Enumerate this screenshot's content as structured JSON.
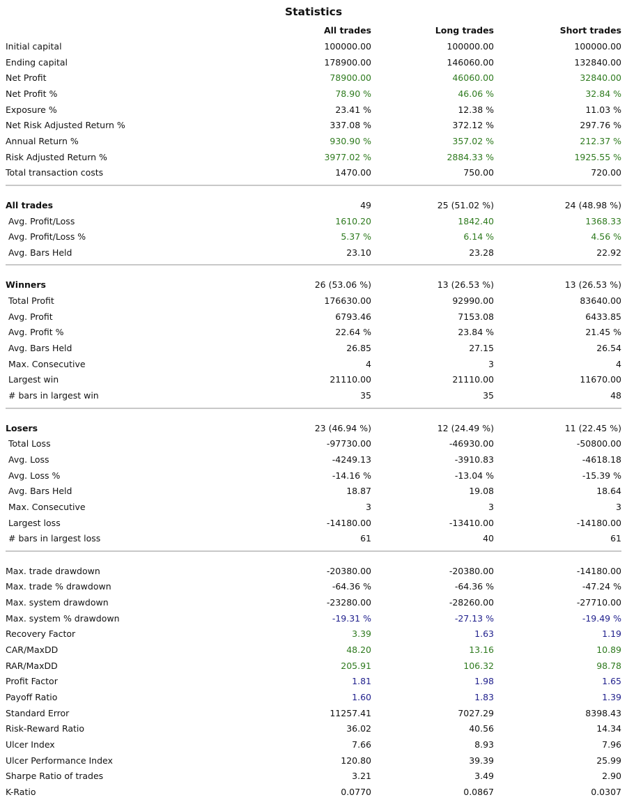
{
  "title": "Statistics",
  "headers": [
    "All trades",
    "Long trades",
    "Short trades"
  ],
  "colors": {
    "green": "#2e7a1e",
    "blue": "#1f1f8c",
    "black": "#111111",
    "separator": "#c8c8c8"
  },
  "rows": [
    {
      "label": "Initial capital",
      "all": "100000.00",
      "long": "100000.00",
      "short": "100000.00",
      "color": "k",
      "style": "",
      "sep_before": false
    },
    {
      "label": "Ending capital",
      "all": "178900.00",
      "long": "146060.00",
      "short": "132840.00",
      "color": "k",
      "style": "",
      "sep_before": false
    },
    {
      "label": "Net Profit",
      "all": "78900.00",
      "long": "46060.00",
      "short": "32840.00",
      "color": "g",
      "style": "",
      "sep_before": false
    },
    {
      "label": "Net Profit %",
      "all": "78.90 %",
      "long": "46.06 %",
      "short": "32.84 %",
      "color": "g",
      "style": "",
      "sep_before": false
    },
    {
      "label": "Exposure %",
      "all": "23.41 %",
      "long": "12.38 %",
      "short": "11.03 %",
      "color": "k",
      "style": "",
      "sep_before": false
    },
    {
      "label": "Net Risk Adjusted Return %",
      "all": "337.08 %",
      "long": "372.12 %",
      "short": "297.76 %",
      "color": "k",
      "style": "",
      "sep_before": false
    },
    {
      "label": "Annual Return %",
      "all": "930.90 %",
      "long": "357.02 %",
      "short": "212.37 %",
      "color": "g",
      "style": "",
      "sep_before": false
    },
    {
      "label": "Risk Adjusted Return %",
      "all": "3977.02 %",
      "long": "2884.33 %",
      "short": "1925.55 %",
      "color": "g",
      "style": "",
      "sep_before": false
    },
    {
      "label": "Total transaction costs",
      "all": "1470.00",
      "long": "750.00",
      "short": "720.00",
      "color": "k",
      "style": "",
      "sep_before": false
    },
    {
      "label": "All trades",
      "all": "49",
      "long": "25 (51.02 %)",
      "short": "24 (48.98 %)",
      "color": "k",
      "style": "bold",
      "sep_before": true
    },
    {
      "label": "Avg. Profit/Loss",
      "all": "1610.20",
      "long": "1842.40",
      "short": "1368.33",
      "color": "g",
      "style": "indent",
      "sep_before": false
    },
    {
      "label": "Avg. Profit/Loss %",
      "all": "5.37 %",
      "long": "6.14 %",
      "short": "4.56 %",
      "color": "g",
      "style": "indent",
      "sep_before": false
    },
    {
      "label": "Avg. Bars Held",
      "all": "23.10",
      "long": "23.28",
      "short": "22.92",
      "color": "k",
      "style": "indent",
      "sep_before": false
    },
    {
      "label": "Winners",
      "all": "26 (53.06 %)",
      "long": "13 (26.53 %)",
      "short": "13 (26.53 %)",
      "color": "k",
      "style": "bold",
      "sep_before": true
    },
    {
      "label": "Total Profit",
      "all": "176630.00",
      "long": "92990.00",
      "short": "83640.00",
      "color": "k",
      "style": "indent",
      "sep_before": false
    },
    {
      "label": "Avg. Profit",
      "all": "6793.46",
      "long": "7153.08",
      "short": "6433.85",
      "color": "k",
      "style": "indent",
      "sep_before": false
    },
    {
      "label": "Avg. Profit %",
      "all": "22.64 %",
      "long": "23.84 %",
      "short": "21.45 %",
      "color": "k",
      "style": "indent",
      "sep_before": false
    },
    {
      "label": "Avg. Bars Held",
      "all": "26.85",
      "long": "27.15",
      "short": "26.54",
      "color": "k",
      "style": "indent",
      "sep_before": false
    },
    {
      "label": "Max. Consecutive",
      "all": "4",
      "long": "3",
      "short": "4",
      "color": "k",
      "style": "indent",
      "sep_before": false
    },
    {
      "label": "Largest win",
      "all": "21110.00",
      "long": "21110.00",
      "short": "11670.00",
      "color": "k",
      "style": "indent",
      "sep_before": false
    },
    {
      "label": "# bars in largest win",
      "all": "35",
      "long": "35",
      "short": "48",
      "color": "k",
      "style": "indent",
      "sep_before": false
    },
    {
      "label": "Losers",
      "all": "23 (46.94 %)",
      "long": "12 (24.49 %)",
      "short": "11 (22.45 %)",
      "color": "k",
      "style": "bold",
      "sep_before": true
    },
    {
      "label": "Total Loss",
      "all": "-97730.00",
      "long": "-46930.00",
      "short": "-50800.00",
      "color": "k",
      "style": "indent",
      "sep_before": false
    },
    {
      "label": "Avg. Loss",
      "all": "-4249.13",
      "long": "-3910.83",
      "short": "-4618.18",
      "color": "k",
      "style": "indent",
      "sep_before": false
    },
    {
      "label": "Avg. Loss %",
      "all": "-14.16 %",
      "long": "-13.04 %",
      "short": "-15.39 %",
      "color": "k",
      "style": "indent",
      "sep_before": false
    },
    {
      "label": "Avg. Bars Held",
      "all": "18.87",
      "long": "19.08",
      "short": "18.64",
      "color": "k",
      "style": "indent",
      "sep_before": false
    },
    {
      "label": "Max. Consecutive",
      "all": "3",
      "long": "3",
      "short": "3",
      "color": "k",
      "style": "indent",
      "sep_before": false
    },
    {
      "label": "Largest loss",
      "all": "-14180.00",
      "long": "-13410.00",
      "short": "-14180.00",
      "color": "k",
      "style": "indent",
      "sep_before": false
    },
    {
      "label": "# bars in largest loss",
      "all": "61",
      "long": "40",
      "short": "61",
      "color": "k",
      "style": "indent",
      "sep_before": false
    },
    {
      "label": "Max. trade drawdown",
      "all": "-20380.00",
      "long": "-20380.00",
      "short": "-14180.00",
      "color": "k",
      "style": "",
      "sep_before": true
    },
    {
      "label": "Max. trade % drawdown",
      "all": "-64.36 %",
      "long": "-64.36 %",
      "short": "-47.24 %",
      "color": "k",
      "style": "",
      "sep_before": false
    },
    {
      "label": "Max. system drawdown",
      "all": "-23280.00",
      "long": "-28260.00",
      "short": "-27710.00",
      "color": "k",
      "style": "",
      "sep_before": false
    },
    {
      "label": "Max. system % drawdown",
      "all": "-19.31 %",
      "long": "-27.13 %",
      "short": "-19.49 %",
      "color": "b",
      "style": "",
      "sep_before": false
    },
    {
      "label": "Recovery Factor",
      "all": "3.39",
      "long": "1.63",
      "short": "1.19",
      "color": "g",
      "colors": [
        "g",
        "b",
        "b"
      ],
      "style": "",
      "sep_before": false
    },
    {
      "label": "CAR/MaxDD",
      "all": "48.20",
      "long": "13.16",
      "short": "10.89",
      "color": "g",
      "style": "",
      "sep_before": false
    },
    {
      "label": "RAR/MaxDD",
      "all": "205.91",
      "long": "106.32",
      "short": "98.78",
      "color": "g",
      "style": "",
      "sep_before": false
    },
    {
      "label": "Profit Factor",
      "all": "1.81",
      "long": "1.98",
      "short": "1.65",
      "color": "b",
      "style": "",
      "sep_before": false
    },
    {
      "label": "Payoff Ratio",
      "all": "1.60",
      "long": "1.83",
      "short": "1.39",
      "color": "b",
      "style": "",
      "sep_before": false
    },
    {
      "label": "Standard Error",
      "all": "11257.41",
      "long": "7027.29",
      "short": "8398.43",
      "color": "k",
      "style": "",
      "sep_before": false
    },
    {
      "label": "Risk-Reward Ratio",
      "all": "36.02",
      "long": "40.56",
      "short": "14.34",
      "color": "k",
      "style": "",
      "sep_before": false
    },
    {
      "label": "Ulcer Index",
      "all": "7.66",
      "long": "8.93",
      "short": "7.96",
      "color": "k",
      "style": "",
      "sep_before": false
    },
    {
      "label": "Ulcer Performance Index",
      "all": "120.80",
      "long": "39.39",
      "short": "25.99",
      "color": "k",
      "style": "",
      "sep_before": false
    },
    {
      "label": "Sharpe Ratio of trades",
      "all": "3.21",
      "long": "3.49",
      "short": "2.90",
      "color": "k",
      "style": "",
      "sep_before": false
    },
    {
      "label": "K-Ratio",
      "all": "0.0770",
      "long": "0.0867",
      "short": "0.0307",
      "color": "k",
      "style": "",
      "sep_before": false
    }
  ]
}
